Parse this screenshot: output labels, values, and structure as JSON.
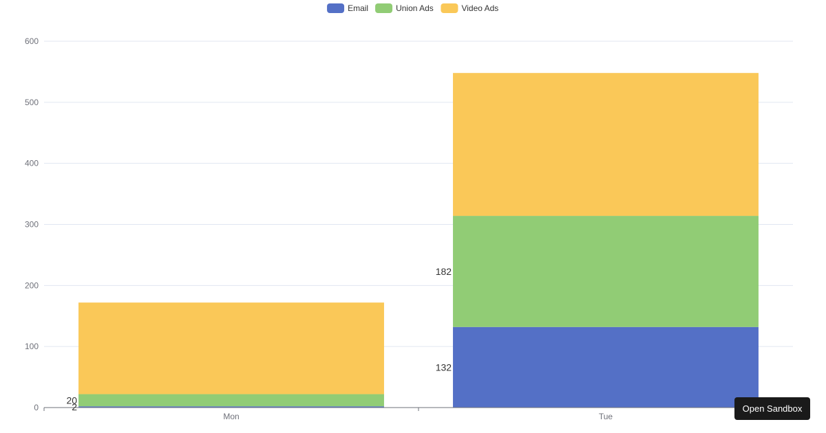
{
  "chart_data": {
    "type": "bar",
    "stacked": true,
    "categories": [
      "Mon",
      "Tue"
    ],
    "series": [
      {
        "name": "Email",
        "values": [
          2,
          132
        ],
        "color": "#5470c6",
        "label_shown": true
      },
      {
        "name": "Union Ads",
        "values": [
          20,
          182
        ],
        "color": "#91cc75",
        "label_shown": true
      },
      {
        "name": "Video Ads",
        "values": [
          150,
          234
        ],
        "color": "#fac858",
        "label_shown": false
      }
    ],
    "ylim": [
      0,
      600
    ],
    "yticks": [
      0,
      100,
      200,
      300,
      400,
      500,
      600
    ],
    "grid": true,
    "legend_position": "top-center"
  },
  "actions": {
    "sandbox_label": "Open Sandbox"
  }
}
